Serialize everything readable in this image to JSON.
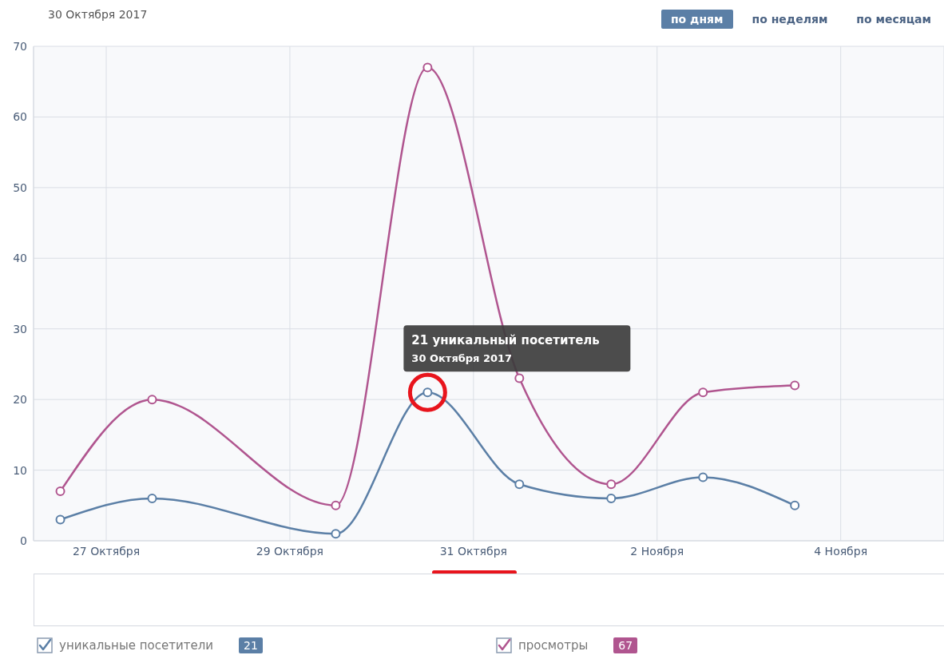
{
  "chart_data": {
    "type": "line",
    "title": "30 Октября 2017",
    "x": [
      "2017-10-26T12:00",
      "2017-10-27T12:00",
      "2017-10-29T12:00",
      "2017-10-30T12:00",
      "2017-10-31T12:00",
      "2017-11-01T12:00",
      "2017-11-02T12:00",
      "2017-11-03T12:00"
    ],
    "series": [
      {
        "name": "уникальные посетители",
        "color": "#5b7fa6",
        "values": [
          3,
          6,
          1,
          21,
          8,
          6,
          9,
          5
        ]
      },
      {
        "name": "просмотры",
        "color": "#b0558f",
        "values": [
          7,
          20,
          5,
          67,
          23,
          8,
          21,
          22
        ]
      }
    ],
    "xlim": [
      "2017-10-26T05:00",
      "2017-11-05T03:00"
    ],
    "xticks": [
      {
        "value": "2017-10-27",
        "label": "27 Октября"
      },
      {
        "value": "2017-10-29",
        "label": "29 Октября"
      },
      {
        "value": "2017-10-31",
        "label": "31 Октября"
      },
      {
        "value": "2017-11-02",
        "label": "2 Ноября"
      },
      {
        "value": "2017-11-04",
        "label": "4 Ноября"
      }
    ],
    "ylim": [
      0,
      70
    ],
    "yticks": [
      0,
      10,
      20,
      30,
      40,
      50,
      60,
      70
    ],
    "grid": true,
    "legend": "bottom",
    "marker": "circle",
    "line_style": "solid",
    "annotations": [
      "по дням",
      "по неделям",
      "по месяцам",
      {
        "text": "21 уникальный посетитель\n30 Октября 2017",
        "x": "2017-10-30T12:00",
        "y": 21
      },
      "21",
      "67"
    ]
  }
}
